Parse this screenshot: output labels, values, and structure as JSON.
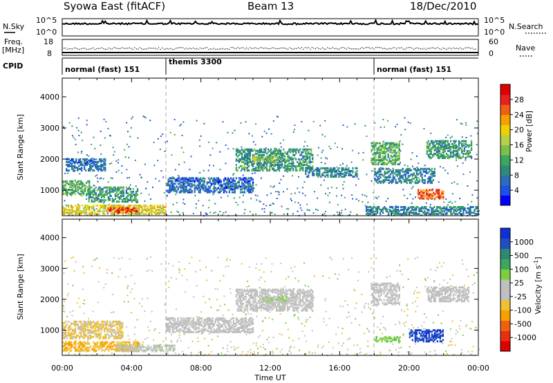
{
  "header": {
    "title": "Syowa East (fitACF)",
    "beam": "Beam 13",
    "date": "18/Dec/2010"
  },
  "aux_panels": {
    "nsky_label": "N.Sky",
    "nsky_ticks": [
      "10^5",
      "10^0"
    ],
    "nsearch_label": "N.Search",
    "nsearch_ticks": [
      "10^5",
      "10^0"
    ],
    "freq_label_1": "Freq.",
    "freq_label_2": "[MHz]",
    "freq_ticks": [
      "18",
      "8"
    ],
    "nave_label": "Nave",
    "nave_ticks": [
      "60",
      "0"
    ],
    "cpid_label": "CPID",
    "cpid_segments": [
      {
        "label": "normal (fast) 151",
        "start": 0,
        "end": 6
      },
      {
        "label": "themis 3300",
        "start": 6,
        "end": 18
      },
      {
        "label": "normal (fast) 151",
        "start": 18,
        "end": 24
      }
    ]
  },
  "chart_data": [
    {
      "type": "heatmap",
      "name": "power",
      "xlabel": "Time UT",
      "ylabel": "Slant Range [km]",
      "xlim": [
        0,
        24
      ],
      "ylim": [
        180,
        4600
      ],
      "x_ticks": [
        "00:00",
        "04:00",
        "08:00",
        "12:00",
        "16:00",
        "20:00",
        "00:00"
      ],
      "y_ticks": [
        "1000",
        "2000",
        "3000",
        "4000"
      ],
      "colorbar": {
        "label": "Power [dB]",
        "ticks": [
          "28",
          "24",
          "20",
          "16",
          "12",
          "8",
          "4"
        ],
        "range": [
          0,
          30
        ],
        "colors": [
          "#0000ff",
          "#1e50e8",
          "#2d6db8",
          "#2f8a7a",
          "#3aa860",
          "#7cc04a",
          "#b8d048",
          "#f0d000",
          "#f7a000",
          "#f06010",
          "#e82020",
          "#e00000"
        ]
      },
      "regions": [
        {
          "t": [
            0.0,
            1.6
          ],
          "r": [
            800,
            1300
          ],
          "level": 12
        },
        {
          "t": [
            0.2,
            2.5
          ],
          "r": [
            1600,
            2000
          ],
          "level": 6
        },
        {
          "t": [
            0.0,
            6.0
          ],
          "r": [
            200,
            500
          ],
          "level": 18
        },
        {
          "t": [
            2.6,
            4.4
          ],
          "r": [
            250,
            420
          ],
          "level": 26
        },
        {
          "t": [
            1.5,
            4.4
          ],
          "r": [
            600,
            1100
          ],
          "level": 10
        },
        {
          "t": [
            6.0,
            11.0
          ],
          "r": [
            900,
            1400
          ],
          "level": 6
        },
        {
          "t": [
            10.0,
            14.5
          ],
          "r": [
            1600,
            2300
          ],
          "level": 10
        },
        {
          "t": [
            11.0,
            12.5
          ],
          "r": [
            1900,
            2100
          ],
          "level": 16
        },
        {
          "t": [
            14.0,
            17.0
          ],
          "r": [
            1400,
            1700
          ],
          "level": 8
        },
        {
          "t": [
            17.8,
            19.5
          ],
          "r": [
            1800,
            2500
          ],
          "level": 12
        },
        {
          "t": [
            18.0,
            21.5
          ],
          "r": [
            1200,
            1700
          ],
          "level": 8
        },
        {
          "t": [
            20.5,
            22.0
          ],
          "r": [
            700,
            1000
          ],
          "level": 24
        },
        {
          "t": [
            21.0,
            23.6
          ],
          "r": [
            2000,
            2600
          ],
          "level": 10
        },
        {
          "t": [
            17.5,
            24.0
          ],
          "r": [
            200,
            450
          ],
          "level": 8
        }
      ]
    },
    {
      "type": "heatmap",
      "name": "velocity",
      "xlabel": "Time UT",
      "ylabel": "Slant Range [km]",
      "xlim": [
        0,
        24
      ],
      "ylim": [
        180,
        4600
      ],
      "x_ticks": [
        "00:00",
        "04:00",
        "08:00",
        "12:00",
        "16:00",
        "20:00",
        "00:00"
      ],
      "y_ticks": [
        "1000",
        "2000",
        "3000",
        "4000"
      ],
      "colorbar": {
        "label": "Velocity [m s",
        "label_sup": "-1",
        "label_end": "]",
        "ticks": [
          "1000",
          "500",
          "100",
          "25",
          "-25",
          "-100",
          "-500",
          "-1000"
        ],
        "range": [
          -1000,
          1000
        ],
        "colors": [
          "#e00000",
          "#e83010",
          "#f06010",
          "#f7a000",
          "#f0c030",
          "#c0c0c0",
          "#c0c0c0",
          "#7cd040",
          "#3aa860",
          "#2d8a70",
          "#2050c0",
          "#1030d0"
        ]
      },
      "regions": [
        {
          "t": [
            0.0,
            3.5
          ],
          "r": [
            700,
            1300
          ],
          "level": -200
        },
        {
          "t": [
            0.0,
            4.5
          ],
          "r": [
            300,
            600
          ],
          "level": -300
        },
        {
          "t": [
            3.0,
            6.5
          ],
          "r": [
            280,
            500
          ],
          "level": 60
        },
        {
          "t": [
            6.0,
            11.0
          ],
          "r": [
            900,
            1400
          ],
          "level": 0
        },
        {
          "t": [
            10.0,
            14.5
          ],
          "r": [
            1600,
            2300
          ],
          "level": 0
        },
        {
          "t": [
            11.5,
            13.0
          ],
          "r": [
            1900,
            2100
          ],
          "level": 150
        },
        {
          "t": [
            17.8,
            19.5
          ],
          "r": [
            1800,
            2500
          ],
          "level": 0
        },
        {
          "t": [
            18.0,
            19.5
          ],
          "r": [
            600,
            800
          ],
          "level": 300
        },
        {
          "t": [
            20.0,
            22.0
          ],
          "r": [
            600,
            1000
          ],
          "level": 800
        },
        {
          "t": [
            21.0,
            23.5
          ],
          "r": [
            1900,
            2400
          ],
          "level": 0
        }
      ]
    }
  ]
}
